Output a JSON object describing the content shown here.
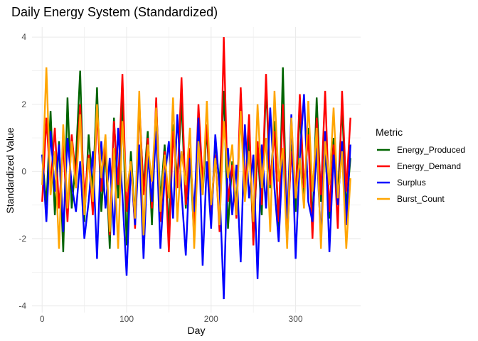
{
  "chart_data": {
    "type": "line",
    "title": "Daily Energy System (Standardized)",
    "xlabel": "Day",
    "ylabel": "Standardized Value",
    "xlim": [
      -12,
      377
    ],
    "ylim": [
      -4.2,
      4.3
    ],
    "x_ticks": [
      0,
      100,
      200,
      300
    ],
    "y_ticks": [
      -4,
      -2,
      0,
      2,
      4
    ],
    "x_tick_labels": [
      "0",
      "100",
      "200",
      "300"
    ],
    "y_tick_labels": [
      "-4",
      "-2",
      "0",
      "2",
      "4"
    ],
    "grid": true,
    "legend": {
      "title": "Metric",
      "placement": "right"
    },
    "x": [
      0,
      5,
      10,
      15,
      20,
      25,
      30,
      35,
      40,
      45,
      50,
      55,
      60,
      65,
      70,
      75,
      80,
      85,
      90,
      95,
      100,
      105,
      110,
      115,
      120,
      125,
      130,
      135,
      140,
      145,
      150,
      155,
      160,
      165,
      170,
      175,
      180,
      185,
      190,
      195,
      200,
      205,
      210,
      215,
      220,
      225,
      230,
      235,
      240,
      245,
      250,
      255,
      260,
      265,
      270,
      275,
      280,
      285,
      290,
      295,
      300,
      305,
      310,
      315,
      320,
      325,
      330,
      335,
      340,
      345,
      350,
      355,
      360,
      365
    ],
    "series": [
      {
        "name": "Energy_Produced",
        "color": "#006400",
        "values": [
          0.5,
          -1.0,
          1.8,
          -1.3,
          0.9,
          -2.4,
          2.2,
          -1.1,
          0.4,
          3.0,
          -1.5,
          1.1,
          -0.6,
          2.5,
          -1.2,
          0.7,
          -2.3,
          1.6,
          -0.8,
          2.3,
          -2.2,
          0.6,
          -1.4,
          1.9,
          -0.5,
          1.2,
          -1.6,
          2.0,
          -0.9,
          0.8,
          -1.8,
          1.4,
          -0.3,
          2.1,
          -1.1,
          0.5,
          -2.0,
          1.7,
          -0.7,
          1.3,
          -1.5,
          0.9,
          -0.4,
          2.4,
          -1.7,
          0.3,
          -1.0,
          1.8,
          -0.6,
          1.1,
          -2.1,
          0.7,
          -1.3,
          2.6,
          -0.5,
          1.5,
          -1.9,
          3.1,
          -2.1,
          0.8,
          -1.2,
          1.9,
          -0.7,
          1.3,
          -1.6,
          2.2,
          -0.9,
          0.6,
          -1.4,
          1.0,
          -0.8,
          2.0,
          -1.1,
          0.4
        ]
      },
      {
        "name": "Energy_Demand",
        "color": "#ff0000",
        "values": [
          -0.9,
          1.6,
          -0.4,
          1.3,
          -1.1,
          0.8,
          -1.5,
          1.1,
          -0.2,
          2.0,
          -0.8,
          0.5,
          -1.3,
          1.8,
          -0.6,
          0.9,
          -1.9,
          1.5,
          -0.4,
          2.9,
          -1.2,
          0.3,
          -1.7,
          2.1,
          -0.7,
          1.0,
          -1.1,
          2.2,
          -1.5,
          0.6,
          -2.4,
          1.2,
          -0.5,
          2.8,
          -1.0,
          0.7,
          -1.6,
          2.0,
          -0.3,
          1.4,
          -1.3,
          0.5,
          -1.8,
          4.0,
          -0.9,
          0.2,
          -1.4,
          2.5,
          -0.6,
          1.7,
          -2.2,
          0.9,
          -1.0,
          2.9,
          -0.4,
          1.2,
          -1.5,
          2.0,
          -1.9,
          0.6,
          -0.8,
          2.3,
          -0.5,
          1.1,
          -2.0,
          1.6,
          -0.7,
          2.4,
          -1.2,
          0.8,
          -1.7,
          2.4,
          -0.6,
          1.6
        ]
      },
      {
        "name": "Surplus",
        "color": "#0000ff",
        "values": [
          0.5,
          -1.5,
          1.2,
          -0.6,
          0.8,
          -1.8,
          1.0,
          -0.4,
          -1.2,
          0.3,
          -2.0,
          -0.9,
          0.6,
          -2.6,
          0.9,
          -1.1,
          0.4,
          -1.9,
          1.3,
          -0.7,
          -3.1,
          0.2,
          -1.6,
          0.8,
          -2.6,
          0.5,
          -0.9,
          1.2,
          -2.3,
          -0.2,
          0.9,
          -1.4,
          1.7,
          -0.6,
          -2.5,
          0.4,
          -1.2,
          1.6,
          -2.8,
          0.3,
          -1.7,
          1.1,
          -0.5,
          -3.8,
          0.7,
          -1.3,
          0.2,
          -2.7,
          1.4,
          -0.8,
          0.5,
          -3.2,
          0.8,
          -1.1,
          1.9,
          -0.5,
          -2.1,
          0.6,
          -1.4,
          1.7,
          -2.6,
          0.4,
          2.3,
          -0.9,
          -1.5,
          0.7,
          -2.0,
          1.2,
          -2.4,
          0.5,
          -1.0,
          0.9,
          -1.6,
          0.8
        ]
      },
      {
        "name": "Burst_Count",
        "color": "#ffa500",
        "values": [
          -0.4,
          3.1,
          -0.7,
          0.6,
          -2.3,
          1.4,
          -1.1,
          0.9,
          -0.5,
          1.7,
          -1.3,
          0.4,
          -0.9,
          2.0,
          -0.2,
          1.1,
          -1.8,
          0.7,
          -2.3,
          1.5,
          -0.6,
          0.3,
          -1.4,
          2.4,
          -1.9,
          0.8,
          -0.3,
          1.9,
          -1.2,
          0.5,
          -0.8,
          2.2,
          -1.5,
          0.6,
          -0.4,
          1.3,
          -2.3,
          0.9,
          -0.7,
          2.1,
          -1.0,
          0.4,
          -1.6,
          1.5,
          -0.2,
          0.8,
          -1.3,
          1.8,
          -0.9,
          0.6,
          -1.5,
          2.0,
          -0.5,
          1.0,
          -1.8,
          2.4,
          -0.3,
          0.7,
          -2.3,
          1.6,
          -0.8,
          0.4,
          -1.1,
          2.1,
          -0.6,
          1.3,
          -2.3,
          0.9,
          -0.4,
          1.9,
          -0.8,
          0.6,
          -2.3,
          -0.2
        ]
      }
    ]
  }
}
